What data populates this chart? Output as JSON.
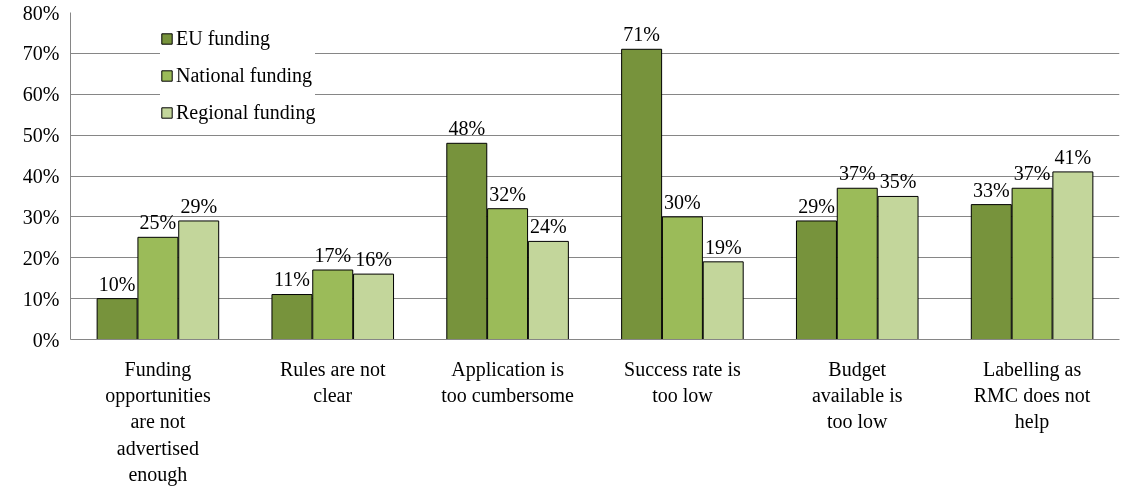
{
  "chart_data": {
    "type": "bar",
    "categories": [
      "Funding opportunities are not advertised enough",
      "Rules are not clear",
      "Application is too cumbersome",
      "Success rate is too low",
      "Budget available is too low",
      "Labelling as RMC does not help"
    ],
    "series": [
      {
        "name": "EU funding",
        "color": "#77933c",
        "values": [
          10,
          11,
          48,
          71,
          29,
          33
        ],
        "value_labels": [
          "10%",
          "11%",
          "48%",
          "71%",
          "29%",
          "33%"
        ]
      },
      {
        "name": "National funding",
        "color": "#9bbb59",
        "values": [
          25,
          17,
          32,
          30,
          37,
          37
        ],
        "value_labels": [
          "25%",
          "17%",
          "32%",
          "30%",
          "37%",
          "37%"
        ]
      },
      {
        "name": "Regional funding",
        "color": "#c3d69b",
        "values": [
          29,
          16,
          24,
          19,
          35,
          41
        ],
        "value_labels": [
          "29%",
          "16%",
          "24%",
          "19%",
          "35%",
          "41%"
        ]
      }
    ],
    "ylim": [
      0,
      80
    ],
    "yticks": [
      {
        "value": 0,
        "label": "0%"
      },
      {
        "value": 10,
        "label": "10%"
      },
      {
        "value": 20,
        "label": "20%"
      },
      {
        "value": 30,
        "label": "30%"
      },
      {
        "value": 40,
        "label": "40%"
      },
      {
        "value": 50,
        "label": "50%"
      },
      {
        "value": 60,
        "label": "60%"
      },
      {
        "value": 70,
        "label": "70%"
      },
      {
        "value": 80,
        "label": "80%"
      }
    ],
    "grid": "y",
    "legend": "top left"
  }
}
